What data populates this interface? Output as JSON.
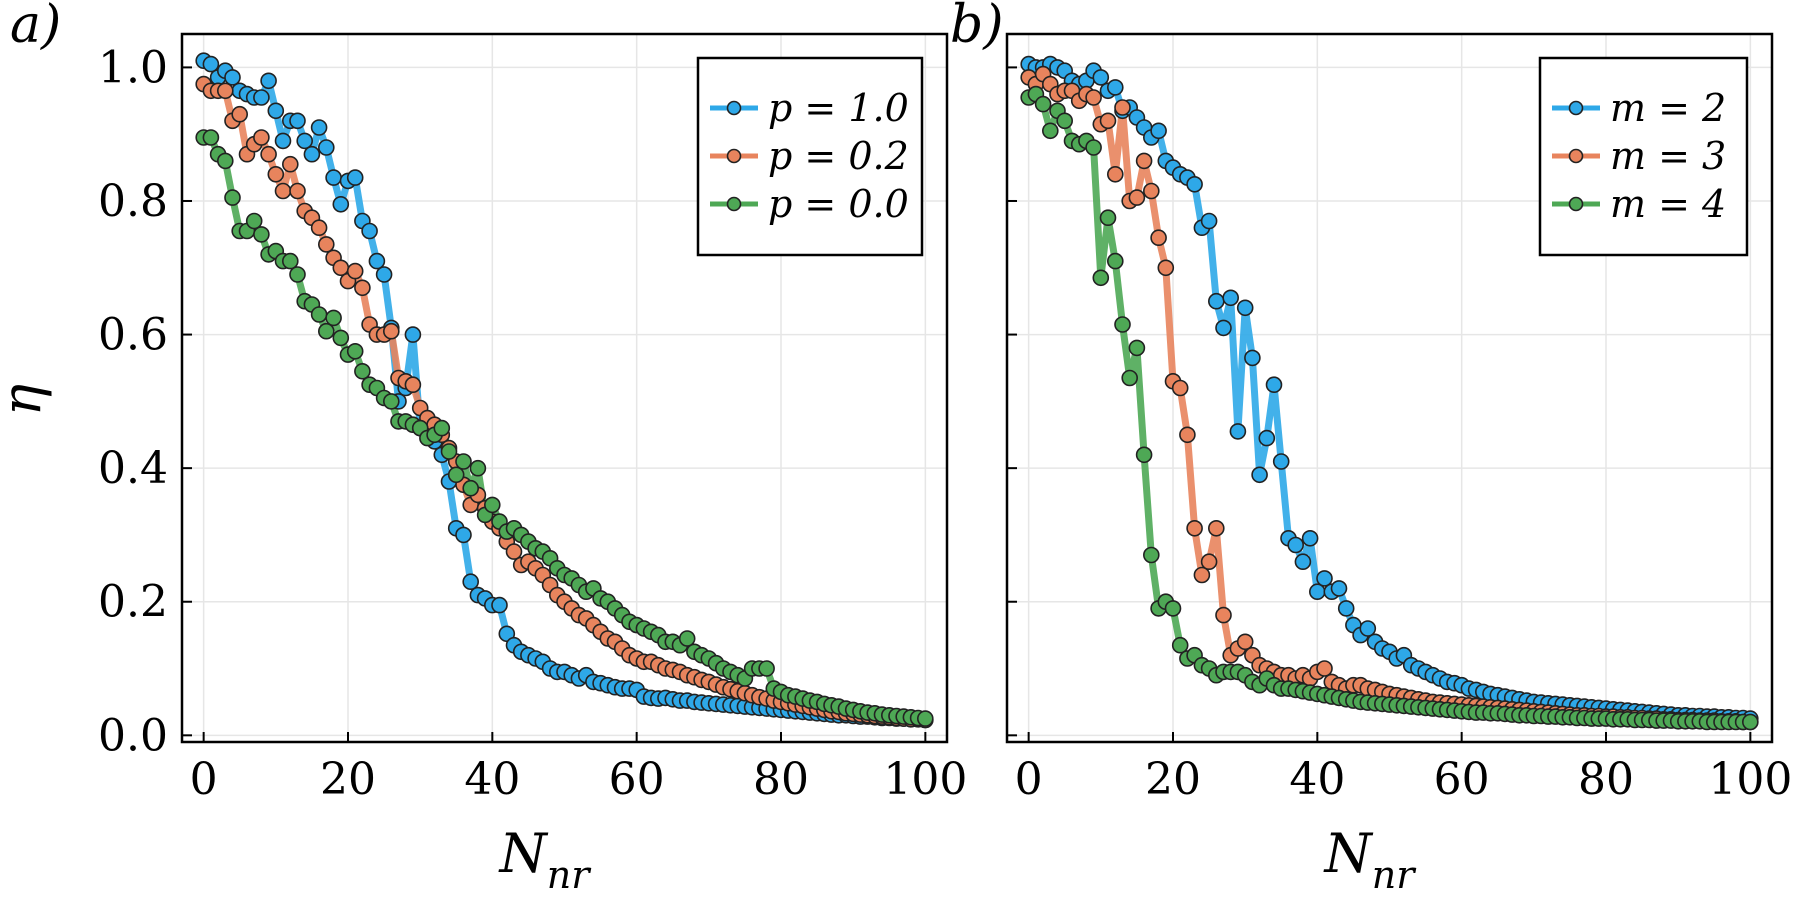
{
  "chart_data": [
    {
      "type": "line",
      "panel_label": "a)",
      "xlabel": "N",
      "xlabel_sub": "nr",
      "ylabel": "η",
      "xlim": [
        -3,
        103
      ],
      "ylim": [
        -0.01,
        1.05
      ],
      "xticks": [
        0,
        20,
        40,
        60,
        80,
        100
      ],
      "xtick_labels": [
        "0",
        "20",
        "40",
        "60",
        "80",
        "100"
      ],
      "yticks": [
        0.0,
        0.2,
        0.4,
        0.6,
        0.8,
        1.0
      ],
      "ytick_labels": [
        "0.0",
        "0.2",
        "0.4",
        "0.6",
        "0.8",
        "1.0"
      ],
      "grid": true,
      "legend_position": "top-right",
      "x": [
        0,
        1,
        2,
        3,
        4,
        5,
        6,
        7,
        8,
        9,
        10,
        11,
        12,
        13,
        14,
        15,
        16,
        17,
        18,
        19,
        20,
        21,
        22,
        23,
        24,
        25,
        26,
        27,
        28,
        29,
        30,
        31,
        32,
        33,
        34,
        35,
        36,
        37,
        38,
        39,
        40,
        41,
        42,
        43,
        44,
        45,
        46,
        47,
        48,
        49,
        50,
        51,
        52,
        53,
        54,
        55,
        56,
        57,
        58,
        59,
        60,
        61,
        62,
        63,
        64,
        65,
        66,
        67,
        68,
        69,
        70,
        71,
        72,
        73,
        74,
        75,
        76,
        77,
        78,
        79,
        80,
        81,
        82,
        83,
        84,
        85,
        86,
        87,
        88,
        89,
        90,
        91,
        92,
        93,
        94,
        95,
        96,
        97,
        98,
        99,
        100
      ],
      "series": [
        {
          "name": "p = 1.0",
          "color": "#2ea8e8",
          "values": [
            1.01,
            1.005,
            0.985,
            0.995,
            0.985,
            0.965,
            0.96,
            0.955,
            0.955,
            0.98,
            0.935,
            0.89,
            0.92,
            0.92,
            0.89,
            0.87,
            0.91,
            0.88,
            0.835,
            0.795,
            0.83,
            0.835,
            0.77,
            0.755,
            0.71,
            0.69,
            0.61,
            0.5,
            0.52,
            0.6,
            0.46,
            0.455,
            0.44,
            0.42,
            0.38,
            0.31,
            0.3,
            0.23,
            0.21,
            0.205,
            0.195,
            0.195,
            0.152,
            0.135,
            0.125,
            0.12,
            0.115,
            0.11,
            0.1,
            0.095,
            0.095,
            0.09,
            0.085,
            0.09,
            0.08,
            0.078,
            0.075,
            0.072,
            0.07,
            0.07,
            0.068,
            0.058,
            0.056,
            0.055,
            0.056,
            0.054,
            0.052,
            0.052,
            0.05,
            0.049,
            0.048,
            0.047,
            0.046,
            0.045,
            0.044,
            0.043,
            0.042,
            0.041,
            0.04,
            0.039,
            0.038,
            0.037,
            0.036,
            0.035,
            0.034,
            0.033,
            0.032,
            0.031,
            0.03,
            0.03,
            0.029,
            0.028,
            0.028,
            0.027,
            0.026,
            0.026,
            0.025,
            0.025,
            0.024,
            0.024,
            0.023
          ]
        },
        {
          "name": "p = 0.2",
          "color": "#e8845d",
          "values": [
            0.975,
            0.965,
            0.965,
            0.965,
            0.92,
            0.93,
            0.87,
            0.885,
            0.895,
            0.87,
            0.84,
            0.815,
            0.855,
            0.815,
            0.785,
            0.775,
            0.76,
            0.735,
            0.715,
            0.7,
            0.68,
            0.695,
            0.67,
            0.615,
            0.6,
            0.6,
            0.605,
            0.535,
            0.53,
            0.525,
            0.49,
            0.475,
            0.465,
            0.45,
            0.43,
            0.41,
            0.375,
            0.345,
            0.36,
            0.34,
            0.32,
            0.31,
            0.29,
            0.275,
            0.255,
            0.26,
            0.25,
            0.24,
            0.225,
            0.21,
            0.2,
            0.19,
            0.18,
            0.175,
            0.165,
            0.155,
            0.145,
            0.14,
            0.13,
            0.12,
            0.115,
            0.11,
            0.11,
            0.105,
            0.1,
            0.098,
            0.095,
            0.09,
            0.087,
            0.083,
            0.08,
            0.076,
            0.072,
            0.069,
            0.066,
            0.063,
            0.06,
            0.057,
            0.055,
            0.052,
            0.05,
            0.048,
            0.046,
            0.044,
            0.042,
            0.04,
            0.038,
            0.036,
            0.035,
            0.033,
            0.032,
            0.031,
            0.03,
            0.029,
            0.028,
            0.027,
            0.026,
            0.025,
            0.024,
            0.024,
            0.023
          ]
        },
        {
          "name": "p = 0.0",
          "color": "#4ea855",
          "values": [
            0.895,
            0.895,
            0.87,
            0.86,
            0.805,
            0.755,
            0.755,
            0.77,
            0.75,
            0.72,
            0.725,
            0.71,
            0.71,
            0.69,
            0.65,
            0.645,
            0.63,
            0.605,
            0.625,
            0.595,
            0.57,
            0.575,
            0.545,
            0.525,
            0.52,
            0.505,
            0.5,
            0.47,
            0.47,
            0.465,
            0.46,
            0.445,
            0.45,
            0.46,
            0.425,
            0.39,
            0.41,
            0.37,
            0.4,
            0.33,
            0.345,
            0.32,
            0.305,
            0.31,
            0.3,
            0.29,
            0.28,
            0.275,
            0.265,
            0.25,
            0.24,
            0.235,
            0.225,
            0.215,
            0.22,
            0.205,
            0.2,
            0.19,
            0.18,
            0.17,
            0.165,
            0.16,
            0.155,
            0.15,
            0.14,
            0.14,
            0.135,
            0.145,
            0.125,
            0.12,
            0.115,
            0.108,
            0.1,
            0.095,
            0.09,
            0.085,
            0.1,
            0.1,
            0.1,
            0.07,
            0.065,
            0.06,
            0.058,
            0.055,
            0.052,
            0.05,
            0.047,
            0.045,
            0.043,
            0.04,
            0.038,
            0.036,
            0.034,
            0.033,
            0.031,
            0.03,
            0.029,
            0.028,
            0.027,
            0.026,
            0.025
          ]
        }
      ]
    },
    {
      "type": "line",
      "panel_label": "b)",
      "xlabel": "N",
      "xlabel_sub": "nr",
      "ylabel": "",
      "xlim": [
        -3,
        103
      ],
      "ylim": [
        -0.01,
        1.05
      ],
      "xticks": [
        0,
        20,
        40,
        60,
        80,
        100
      ],
      "xtick_labels": [
        "0",
        "20",
        "40",
        "60",
        "80",
        "100"
      ],
      "yticks": [
        0.0,
        0.2,
        0.4,
        0.6,
        0.8,
        1.0
      ],
      "ytick_labels": [],
      "grid": true,
      "legend_position": "top-right",
      "x": [
        0,
        1,
        2,
        3,
        4,
        5,
        6,
        7,
        8,
        9,
        10,
        11,
        12,
        13,
        14,
        15,
        16,
        17,
        18,
        19,
        20,
        21,
        22,
        23,
        24,
        25,
        26,
        27,
        28,
        29,
        30,
        31,
        32,
        33,
        34,
        35,
        36,
        37,
        38,
        39,
        40,
        41,
        42,
        43,
        44,
        45,
        46,
        47,
        48,
        49,
        50,
        51,
        52,
        53,
        54,
        55,
        56,
        57,
        58,
        59,
        60,
        61,
        62,
        63,
        64,
        65,
        66,
        67,
        68,
        69,
        70,
        71,
        72,
        73,
        74,
        75,
        76,
        77,
        78,
        79,
        80,
        81,
        82,
        83,
        84,
        85,
        86,
        87,
        88,
        89,
        90,
        91,
        92,
        93,
        94,
        95,
        96,
        97,
        98,
        99,
        100
      ],
      "series": [
        {
          "name": "m = 2",
          "color": "#2ea8e8",
          "values": [
            1.005,
            1.0,
            1.0,
            1.005,
            1.0,
            0.995,
            0.98,
            0.975,
            0.98,
            0.995,
            0.985,
            0.965,
            0.97,
            0.935,
            0.94,
            0.925,
            0.91,
            0.895,
            0.905,
            0.86,
            0.85,
            0.84,
            0.835,
            0.825,
            0.76,
            0.77,
            0.65,
            0.61,
            0.655,
            0.455,
            0.64,
            0.565,
            0.39,
            0.445,
            0.525,
            0.41,
            0.295,
            0.285,
            0.26,
            0.295,
            0.215,
            0.235,
            0.215,
            0.22,
            0.19,
            0.165,
            0.15,
            0.16,
            0.14,
            0.13,
            0.125,
            0.115,
            0.12,
            0.105,
            0.1,
            0.095,
            0.09,
            0.085,
            0.08,
            0.078,
            0.075,
            0.07,
            0.068,
            0.065,
            0.062,
            0.06,
            0.058,
            0.056,
            0.054,
            0.052,
            0.05,
            0.049,
            0.048,
            0.047,
            0.046,
            0.045,
            0.044,
            0.043,
            0.042,
            0.041,
            0.04,
            0.039,
            0.038,
            0.037,
            0.036,
            0.035,
            0.034,
            0.033,
            0.032,
            0.031,
            0.03,
            0.03,
            0.029,
            0.029,
            0.028,
            0.028,
            0.027,
            0.027,
            0.026,
            0.026,
            0.025
          ]
        },
        {
          "name": "m = 3",
          "color": "#e8845d",
          "values": [
            0.985,
            0.975,
            0.99,
            0.975,
            0.96,
            0.965,
            0.965,
            0.95,
            0.96,
            0.955,
            0.915,
            0.92,
            0.84,
            0.94,
            0.8,
            0.805,
            0.86,
            0.815,
            0.745,
            0.7,
            0.53,
            0.52,
            0.45,
            0.31,
            0.24,
            0.26,
            0.31,
            0.18,
            0.12,
            0.13,
            0.14,
            0.12,
            0.105,
            0.1,
            0.095,
            0.09,
            0.09,
            0.085,
            0.09,
            0.085,
            0.095,
            0.1,
            0.08,
            0.075,
            0.07,
            0.075,
            0.075,
            0.07,
            0.068,
            0.065,
            0.062,
            0.06,
            0.058,
            0.056,
            0.054,
            0.052,
            0.05,
            0.049,
            0.048,
            0.047,
            0.046,
            0.045,
            0.044,
            0.043,
            0.042,
            0.041,
            0.04,
            0.039,
            0.038,
            0.037,
            0.036,
            0.035,
            0.034,
            0.033,
            0.032,
            0.031,
            0.03,
            0.03,
            0.029,
            0.029,
            0.028,
            0.028,
            0.027,
            0.027,
            0.026,
            0.026,
            0.025,
            0.025,
            0.024,
            0.024,
            0.023,
            0.023,
            0.023,
            0.022,
            0.022,
            0.022,
            0.021,
            0.021,
            0.021,
            0.02,
            0.02
          ]
        },
        {
          "name": "m = 4",
          "color": "#4ea855",
          "values": [
            0.955,
            0.96,
            0.945,
            0.905,
            0.935,
            0.92,
            0.89,
            0.885,
            0.89,
            0.88,
            0.685,
            0.775,
            0.71,
            0.615,
            0.535,
            0.58,
            0.42,
            0.27,
            0.19,
            0.2,
            0.19,
            0.135,
            0.115,
            0.12,
            0.105,
            0.1,
            0.09,
            0.095,
            0.095,
            0.095,
            0.09,
            0.08,
            0.075,
            0.085,
            0.075,
            0.07,
            0.07,
            0.068,
            0.066,
            0.064,
            0.062,
            0.06,
            0.058,
            0.056,
            0.054,
            0.052,
            0.05,
            0.049,
            0.048,
            0.047,
            0.046,
            0.045,
            0.044,
            0.043,
            0.042,
            0.041,
            0.04,
            0.039,
            0.038,
            0.037,
            0.036,
            0.035,
            0.034,
            0.034,
            0.033,
            0.033,
            0.032,
            0.031,
            0.03,
            0.03,
            0.029,
            0.029,
            0.028,
            0.028,
            0.027,
            0.027,
            0.026,
            0.026,
            0.025,
            0.025,
            0.025,
            0.024,
            0.024,
            0.024,
            0.023,
            0.023,
            0.023,
            0.022,
            0.022,
            0.022,
            0.021,
            0.021,
            0.021,
            0.021,
            0.02,
            0.02,
            0.02,
            0.02,
            0.02,
            0.02,
            0.02
          ]
        }
      ]
    }
  ]
}
